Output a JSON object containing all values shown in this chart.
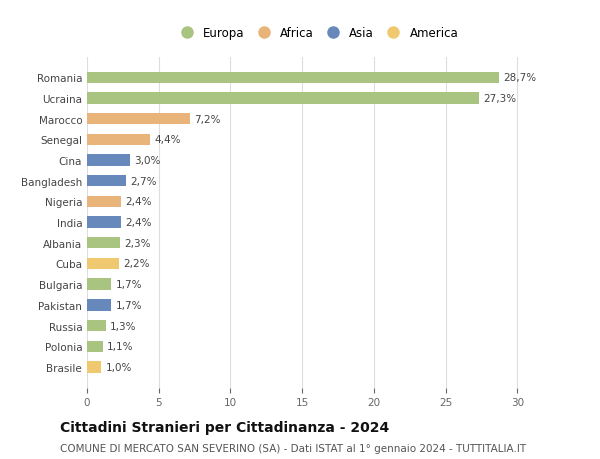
{
  "categories": [
    "Brasile",
    "Polonia",
    "Russia",
    "Pakistan",
    "Bulgaria",
    "Cuba",
    "Albania",
    "India",
    "Nigeria",
    "Bangladesh",
    "Cina",
    "Senegal",
    "Marocco",
    "Ucraina",
    "Romania"
  ],
  "values": [
    1.0,
    1.1,
    1.3,
    1.7,
    1.7,
    2.2,
    2.3,
    2.4,
    2.4,
    2.7,
    3.0,
    4.4,
    7.2,
    27.3,
    28.7
  ],
  "labels": [
    "1,0%",
    "1,1%",
    "1,3%",
    "1,7%",
    "1,7%",
    "2,2%",
    "2,3%",
    "2,4%",
    "2,4%",
    "2,7%",
    "3,0%",
    "4,4%",
    "7,2%",
    "27,3%",
    "28,7%"
  ],
  "continents": [
    "America",
    "Europa",
    "Europa",
    "Asia",
    "Europa",
    "America",
    "Europa",
    "Asia",
    "Africa",
    "Asia",
    "Asia",
    "Africa",
    "Africa",
    "Europa",
    "Europa"
  ],
  "continent_colors": {
    "Europa": "#a8c480",
    "Africa": "#e8b47a",
    "Asia": "#6688bb",
    "America": "#f0c870"
  },
  "legend_order": [
    "Europa",
    "Africa",
    "Asia",
    "America"
  ],
  "title": "Cittadini Stranieri per Cittadinanza - 2024",
  "subtitle": "COMUNE DI MERCATO SAN SEVERINO (SA) - Dati ISTAT al 1° gennaio 2024 - TUTTITALIA.IT",
  "xlim": [
    0,
    32
  ],
  "xticks": [
    0,
    5,
    10,
    15,
    20,
    25,
    30
  ],
  "background_color": "#ffffff",
  "grid_color": "#dddddd",
  "bar_height": 0.55,
  "title_fontsize": 10,
  "subtitle_fontsize": 7.5,
  "label_fontsize": 7.5,
  "tick_fontsize": 7.5,
  "legend_fontsize": 8.5
}
